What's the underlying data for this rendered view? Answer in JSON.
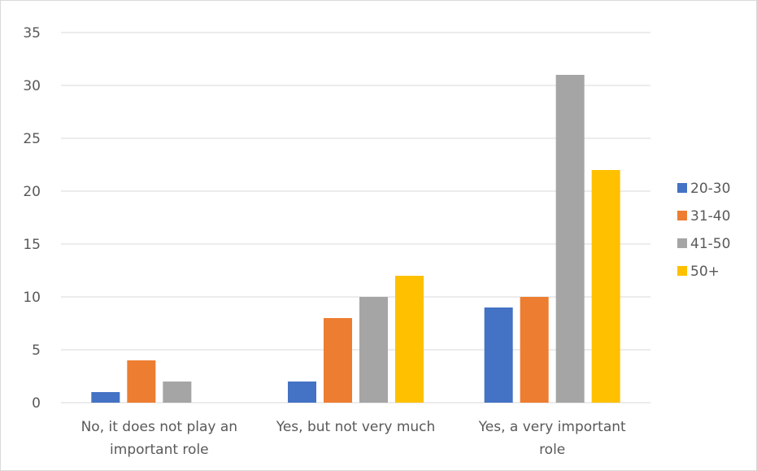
{
  "chart_data": {
    "type": "bar",
    "title": "",
    "xlabel": "",
    "ylabel": "",
    "ylim": [
      0,
      35
    ],
    "yticks": [
      0,
      5,
      10,
      15,
      20,
      25,
      30,
      35
    ],
    "grid": true,
    "legend_position": "right",
    "categories": [
      [
        "No, it does not play an",
        "important role"
      ],
      [
        "Yes, but not very much"
      ],
      [
        "Yes, a very important",
        "role"
      ]
    ],
    "series": [
      {
        "name": "20-30",
        "color": "#4472c4",
        "values": [
          1,
          2,
          9
        ]
      },
      {
        "name": "31-40",
        "color": "#ed7d31",
        "values": [
          4,
          8,
          10
        ]
      },
      {
        "name": "41-50",
        "color": "#a5a5a5",
        "values": [
          2,
          10,
          31
        ]
      },
      {
        "name": "50+",
        "color": "#ffc000",
        "values": [
          0,
          12,
          22
        ]
      }
    ]
  }
}
